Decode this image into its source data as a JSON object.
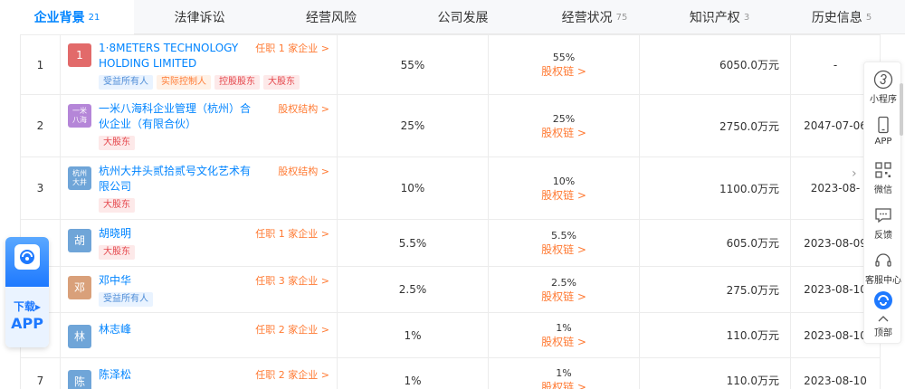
{
  "tabs": [
    {
      "label": "企业背景",
      "count": "21",
      "active": true
    },
    {
      "label": "法律诉讼",
      "count": "",
      "active": false
    },
    {
      "label": "经营风险",
      "count": "",
      "active": false
    },
    {
      "label": "公司发展",
      "count": "",
      "active": false
    },
    {
      "label": "经营状况",
      "count": "75",
      "active": false
    },
    {
      "label": "知识产权",
      "count": "3",
      "active": false
    },
    {
      "label": "历史信息",
      "count": "5",
      "active": false
    }
  ],
  "rows": [
    {
      "index": "1",
      "logo_text": "1",
      "logo_color": "#e26a6a",
      "name": "1·8METERS TECHNOLOGY HOLDING LIMITED",
      "link": "任职 1 家企业 >",
      "tags": [
        [
          "受益所有人",
          "blue"
        ],
        [
          "实际控制人",
          "orange"
        ],
        [
          "控股股东",
          "red"
        ],
        [
          "大股东",
          "red"
        ]
      ],
      "pct": "55%",
      "chain_pct": "55%",
      "chain_link": "股权链 >",
      "amount": "6050.0万元",
      "date": "-"
    },
    {
      "index": "2",
      "logo_text": "一米 八海",
      "logo_color": "#b586d8",
      "name": "一米八海科企业管理（杭州）合伙企业（有限合伙）",
      "link": "股权结构 >",
      "tags": [
        [
          "大股东",
          "red"
        ]
      ],
      "pct": "25%",
      "chain_pct": "25%",
      "chain_link": "股权链 >",
      "amount": "2750.0万元",
      "date": "2047-07-06"
    },
    {
      "index": "3",
      "logo_text": "杭州 大井",
      "logo_color": "#6fa5d8",
      "name": "杭州大井头贰拾贰号文化艺术有限公司",
      "link": "股权结构 >",
      "tags": [
        [
          "大股东",
          "red"
        ]
      ],
      "pct": "10%",
      "chain_pct": "10%",
      "chain_link": "股权链 >",
      "amount": "1100.0万元",
      "date": "2023-08-"
    },
    {
      "index": "4",
      "logo_text": "胡",
      "logo_color": "#6fa5d8",
      "name": "胡晓明",
      "link": "任职 1 家企业 >",
      "tags": [
        [
          "大股东",
          "red"
        ]
      ],
      "pct": "5.5%",
      "chain_pct": "5.5%",
      "chain_link": "股权链 >",
      "amount": "605.0万元",
      "date": "2023-08-09"
    },
    {
      "index": "5",
      "logo_text": "邓",
      "logo_color": "#d9a07a",
      "name": "邓中华",
      "link": "任职 3 家企业 >",
      "tags": [
        [
          "受益所有人",
          "blue"
        ]
      ],
      "pct": "2.5%",
      "chain_pct": "2.5%",
      "chain_link": "股权链 >",
      "amount": "275.0万元",
      "date": "2023-08-10"
    },
    {
      "index": "6",
      "logo_text": "林",
      "logo_color": "#6fa5d8",
      "name": "林志峰",
      "link": "任职 2 家企业 >",
      "tags": [],
      "pct": "1%",
      "chain_pct": "1%",
      "chain_link": "股权链 >",
      "amount": "110.0万元",
      "date": "2023-08-10"
    },
    {
      "index": "7",
      "logo_text": "陈",
      "logo_color": "#6fa5d8",
      "name": "陈泽松",
      "link": "任职 2 家企业 >",
      "tags": [],
      "pct": "1%",
      "chain_pct": "1%",
      "chain_link": "股权链 >",
      "amount": "110.0万元",
      "date": "2023-08-10"
    }
  ],
  "side": {
    "miniprogram": "小程序",
    "app": "APP",
    "qrcode": "微信",
    "feedback": "反馈",
    "service": "客服中心",
    "top": "顶部"
  },
  "download": {
    "line1": "下载▸",
    "line2": "APP"
  }
}
